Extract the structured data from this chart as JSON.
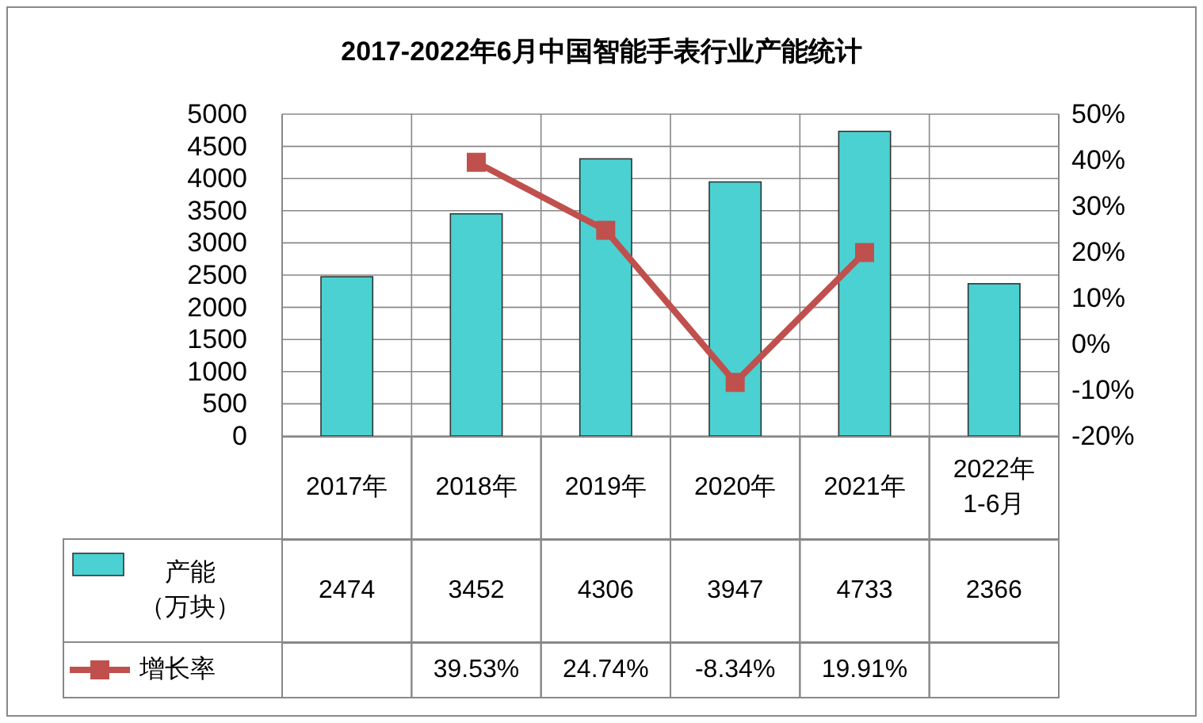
{
  "chart_data": {
    "type": "bar",
    "title": "2017-2022年6月中国智能手表行业产能统计",
    "categories": [
      "2017年",
      "2018年",
      "2019年",
      "2020年",
      "2021年",
      "2022年\n1-6月"
    ],
    "series": [
      {
        "name": "产能（万块）",
        "color": "#4bd1d1",
        "values": [
          2474,
          3452,
          4306,
          3947,
          4733,
          2366
        ],
        "value_labels": [
          "2474",
          "3452",
          "4306",
          "3947",
          "4733",
          "2366"
        ]
      },
      {
        "name": "增长率",
        "type": "line",
        "axis": "y2",
        "color": "#c0504d",
        "marker": "square",
        "values": [
          null,
          39.53,
          24.74,
          -8.34,
          19.91,
          null
        ],
        "value_labels": [
          null,
          "39.53%",
          "24.74%",
          "-8.34%",
          "19.91%",
          null
        ]
      }
    ],
    "ylim": [
      0,
      5000
    ],
    "yticks": [
      0,
      500,
      1000,
      1500,
      2000,
      2500,
      3000,
      3500,
      4000,
      4500,
      5000
    ],
    "y2lim": [
      -20,
      50
    ],
    "y2ticks": [
      {
        "value": -20,
        "label": "-20%"
      },
      {
        "value": -10,
        "label": "-10%"
      },
      {
        "value": 0,
        "label": "0%"
      },
      {
        "value": 10,
        "label": "10%"
      },
      {
        "value": 20,
        "label": "20%"
      },
      {
        "value": 30,
        "label": "30%"
      },
      {
        "value": 40,
        "label": "40%"
      },
      {
        "value": 50,
        "label": "50%"
      }
    ],
    "grid": true,
    "legend": "bottom"
  }
}
